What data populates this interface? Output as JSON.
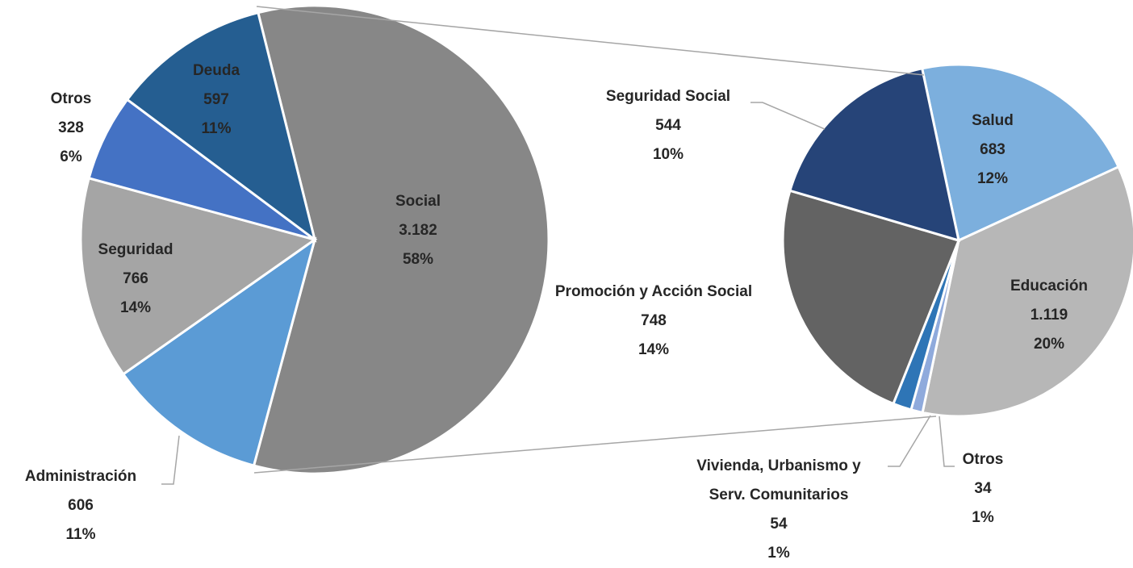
{
  "chart_data": [
    {
      "type": "pie",
      "categories": [
        "Social",
        "Administración",
        "Seguridad",
        "Otros",
        "Deuda"
      ],
      "values": [
        3182,
        606,
        766,
        328,
        597
      ],
      "value_labels": [
        "3.182",
        "606",
        "766",
        "328",
        "597"
      ],
      "percent_labels": [
        "58%",
        "11%",
        "14%",
        "6%",
        "11%"
      ],
      "colors": [
        "#878787",
        "#5b9bd5",
        "#a5a5a5",
        "#4472c4",
        "#255e91"
      ]
    },
    {
      "type": "pie",
      "categories": [
        "Salud",
        "Educación",
        "Otros",
        "Vivienda, Urbanismo y Serv. Comunitarios",
        "Promoción y Acción Social",
        "Seguridad Social"
      ],
      "values": [
        683,
        1119,
        34,
        54,
        748,
        544
      ],
      "value_labels": [
        "683",
        "1.119",
        "34",
        "54",
        "748",
        "544"
      ],
      "percent_labels": [
        "12%",
        "20%",
        "1%",
        "1%",
        "14%",
        "10%"
      ],
      "colors": [
        "#7cafdd",
        "#b7b7b7",
        "#8faadc",
        "#2e75b6",
        "#636363",
        "#264478"
      ]
    }
  ]
}
